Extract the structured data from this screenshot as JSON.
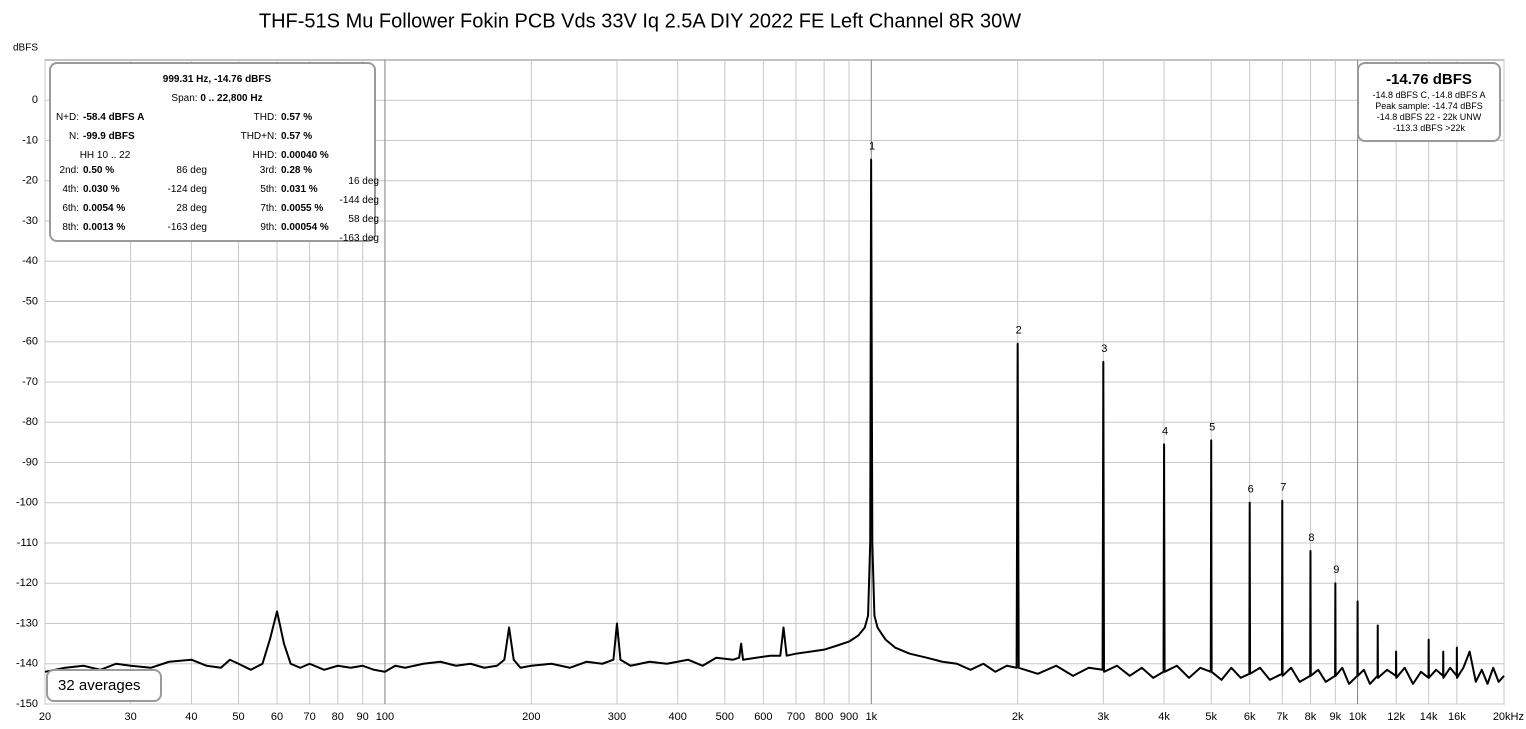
{
  "chart_data": {
    "type": "line",
    "title": "THF-51S Mu Follower Fokin PCB Vds 33V Iq 2.5A DIY 2022 FE Left Channel 8R 30W",
    "ylabel": "dBFS",
    "log_x": true,
    "grid": true,
    "color": "#000000",
    "xlim": [
      20,
      20000
    ],
    "ylim": [
      -150,
      10
    ],
    "yticks": [
      0,
      -10,
      -20,
      -30,
      -40,
      -50,
      -60,
      -70,
      -80,
      -90,
      -100,
      -110,
      -120,
      -130,
      -140,
      -150
    ],
    "xticks": [
      20,
      30,
      40,
      50,
      60,
      70,
      80,
      90,
      100,
      200,
      300,
      400,
      500,
      600,
      700,
      800,
      900,
      {
        "value": 1000,
        "label": "1k"
      },
      {
        "value": 2000,
        "label": "2k"
      },
      {
        "value": 3000,
        "label": "3k"
      },
      {
        "value": 4000,
        "label": "4k"
      },
      {
        "value": 5000,
        "label": "5k"
      },
      {
        "value": 6000,
        "label": "6k"
      },
      {
        "value": 7000,
        "label": "7k"
      },
      {
        "value": 8000,
        "label": "8k"
      },
      {
        "value": 9000,
        "label": "9k"
      },
      {
        "value": 10000,
        "label": "10k"
      },
      {
        "value": 12000,
        "label": "12k"
      },
      {
        "value": 14000,
        "label": "14k"
      },
      {
        "value": 16000,
        "label": "16k"
      },
      {
        "value": 20000,
        "label": "20kHz"
      }
    ],
    "x": [
      20,
      22,
      24,
      26,
      28,
      30,
      33,
      36,
      40,
      43,
      46,
      48,
      50,
      53,
      56,
      58,
      60,
      62,
      64,
      67,
      70,
      75,
      80,
      85,
      90,
      95,
      100,
      105,
      110,
      120,
      130,
      140,
      150,
      160,
      170,
      176,
      180,
      184,
      190,
      200,
      220,
      240,
      260,
      280,
      295,
      300,
      305,
      320,
      350,
      380,
      420,
      450,
      480,
      520,
      535,
      540,
      545,
      580,
      620,
      650,
      660,
      670,
      700,
      750,
      800,
      850,
      900,
      940,
      970,
      985,
      995,
      999.31,
      1005,
      1015,
      1030,
      1070,
      1120,
      1200,
      1300,
      1400,
      1500,
      1600,
      1700,
      1800,
      1900,
      1990,
      2000,
      2010,
      2200,
      2400,
      2600,
      2800,
      2990,
      3000,
      3010,
      3200,
      3400,
      3600,
      3800,
      3990,
      4000,
      4010,
      4250,
      4500,
      4750,
      4990,
      5000,
      5010,
      5250,
      5500,
      5750,
      5990,
      6000,
      6010,
      6300,
      6600,
      6990,
      7000,
      7010,
      7300,
      7600,
      7990,
      8000,
      8010,
      8300,
      8600,
      8990,
      9000,
      9010,
      9300,
      9600,
      9990,
      10000,
      10010,
      10300,
      10600,
      10990,
      11000,
      11010,
      11500,
      11990,
      12000,
      12010,
      12500,
      13000,
      13500,
      13990,
      14000,
      14010,
      14500,
      14990,
      15000,
      15010,
      15500,
      15990,
      16000,
      16010,
      16500,
      17000,
      17500,
      18000,
      18500,
      19000,
      19500,
      20000
    ],
    "values": [
      -142,
      -141,
      -140.5,
      -141.5,
      -140,
      -140.5,
      -141,
      -139.5,
      -139,
      -140.5,
      -141,
      -139,
      -140,
      -141.5,
      -140,
      -134,
      -127,
      -135,
      -140,
      -141,
      -140,
      -141.5,
      -140.5,
      -141,
      -140.5,
      -141.5,
      -142,
      -140.5,
      -141,
      -140,
      -139.5,
      -140.5,
      -140,
      -141,
      -140.5,
      -139,
      -131,
      -139,
      -141,
      -140.5,
      -140,
      -141,
      -139.5,
      -140,
      -139,
      -130,
      -139,
      -140.5,
      -139.5,
      -140,
      -139,
      -140.5,
      -138.5,
      -139,
      -138.5,
      -135,
      -139,
      -138.5,
      -138,
      -138,
      -131,
      -138,
      -137.5,
      -137,
      -136.5,
      -135.5,
      -134.5,
      -133,
      -131,
      -128,
      -110,
      -14.76,
      -110,
      -128,
      -131,
      -134,
      -136,
      -137.5,
      -138.5,
      -139.5,
      -140,
      -141.5,
      -140,
      -142,
      -140.5,
      -141,
      -60.5,
      -141,
      -142.5,
      -140.5,
      -143,
      -141,
      -141.5,
      -65,
      -142,
      -140.5,
      -143,
      -141,
      -143.5,
      -142,
      -85.5,
      -142,
      -140.5,
      -143.5,
      -141,
      -142,
      -84.5,
      -142,
      -144,
      -141,
      -143.5,
      -142.5,
      -100,
      -142.5,
      -141,
      -144,
      -142.5,
      -99.5,
      -143,
      -141,
      -144.5,
      -143,
      -112,
      -143,
      -141.5,
      -144.5,
      -143,
      -120,
      -143,
      -141,
      -145,
      -143,
      -124.5,
      -143,
      -141.5,
      -145,
      -143,
      -130.5,
      -143.5,
      -141.5,
      -143,
      -137,
      -143.5,
      -141,
      -145,
      -142,
      -143.5,
      -134,
      -143.5,
      -141.5,
      -143,
      -137,
      -143.5,
      -141,
      -143,
      -136,
      -143.5,
      -141,
      -137,
      -144.5,
      -141.5,
      -145,
      -141,
      -144.5,
      -143
    ],
    "harmonic_markers": [
      {
        "label": "1",
        "x": 999.31
      },
      {
        "label": "2",
        "x": 2000
      },
      {
        "label": "3",
        "x": 3000
      },
      {
        "label": "4",
        "x": 4000
      },
      {
        "label": "5",
        "x": 5000
      },
      {
        "label": "6",
        "x": 6000
      },
      {
        "label": "7",
        "x": 7000
      },
      {
        "label": "8",
        "x": 8000
      },
      {
        "label": "9",
        "x": 9000
      }
    ],
    "info_panel": {
      "cursor": "999.31 Hz, -14.76 dBFS",
      "span_label": "Span:",
      "span": "0 .. 22,800 Hz",
      "stats": [
        [
          {
            "label": "N+D:",
            "value": "-58.4 dBFS A"
          },
          {
            "label": "THD:",
            "value": "0.57 %"
          }
        ],
        [
          {
            "label": "N:",
            "value": "-99.9 dBFS"
          },
          {
            "label": "THD+N:",
            "value": "0.57 %"
          }
        ],
        [
          {
            "label": "HH 10 .. 22"
          },
          {
            "label": "HHD:",
            "value": "0.00040 %"
          }
        ]
      ],
      "harmonics": [
        [
          {
            "label": "2nd:",
            "value": "0.50 %",
            "phase": "86 deg"
          },
          {
            "label": "3rd:",
            "value": "0.28 %",
            "phase": "16 deg"
          }
        ],
        [
          {
            "label": "4th:",
            "value": "0.030 %",
            "phase": "-124 deg"
          },
          {
            "label": "5th:",
            "value": "0.031 %",
            "phase": "-144 deg"
          }
        ],
        [
          {
            "label": "6th:",
            "value": "0.0054 %",
            "phase": "28 deg"
          },
          {
            "label": "7th:",
            "value": "0.0055 %",
            "phase": "58 deg"
          }
        ],
        [
          {
            "label": "8th:",
            "value": "0.0013 %",
            "phase": "-163 deg"
          },
          {
            "label": "9th:",
            "value": "0.00054 %",
            "phase": "-163 deg"
          }
        ]
      ]
    },
    "level_panel": {
      "level": "-14.76 dBFS",
      "lines": [
        "-14.8 dBFS C, -14.8 dBFS A",
        "Peak sample: -14.74 dBFS",
        "-14.8 dBFS 22 - 22k UNW",
        "-113.3 dBFS >22k"
      ]
    },
    "averages": "32 averages"
  }
}
